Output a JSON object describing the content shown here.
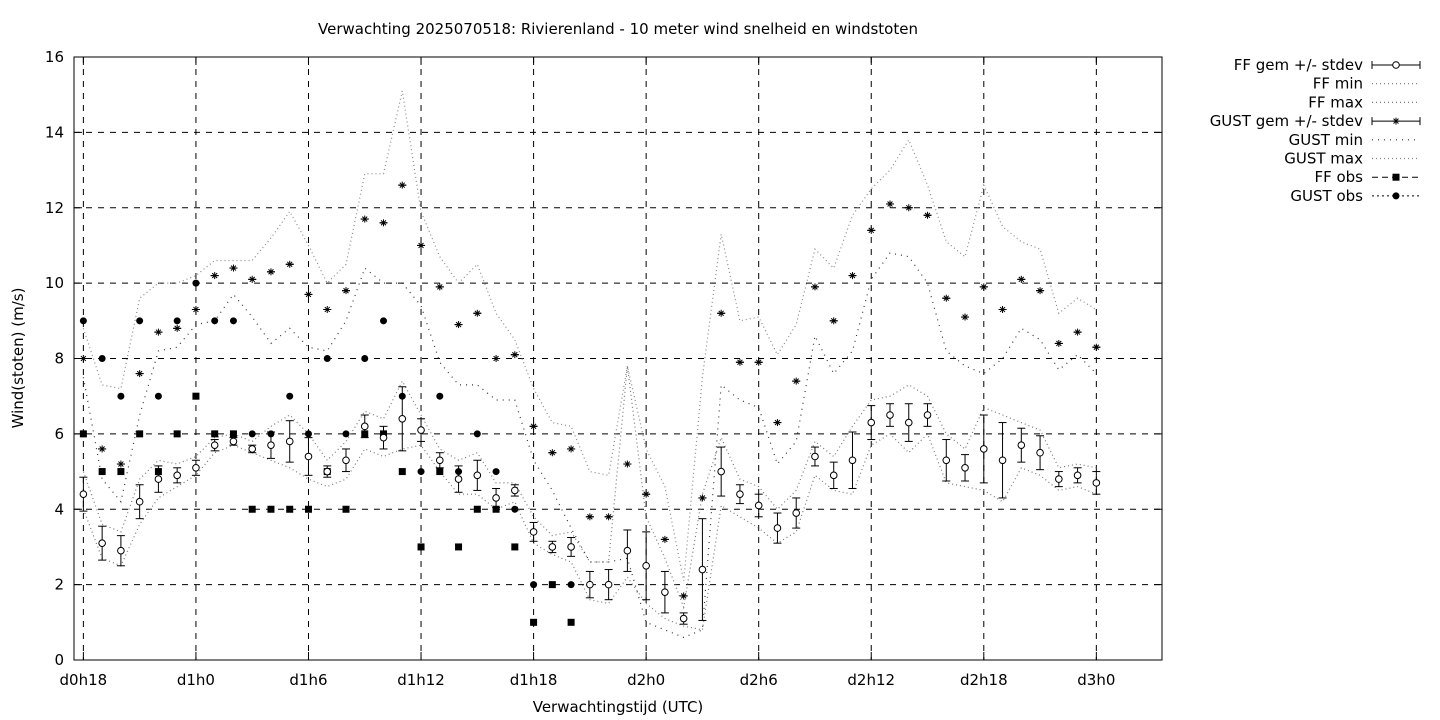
{
  "chart_data": {
    "type": "scatter",
    "title": "Verwachting 2025070518: Rivierenland - 10 meter wind snelheid en windstoten",
    "xlabel": "Verwachtingstijd (UTC)",
    "ylabel": "Wind(stoten) (m/s)",
    "ylim": [
      0,
      16
    ],
    "xlim": [
      -0.5,
      57.5
    ],
    "grid": true,
    "legend_position": "outside-top-right",
    "y_ticks": [
      "0",
      "2",
      "4",
      "6",
      "8",
      "10",
      "12",
      "14",
      "16"
    ],
    "x_ticks": [
      {
        "x": 0,
        "label": "d0h18"
      },
      {
        "x": 6,
        "label": "d1h0"
      },
      {
        "x": 12,
        "label": "d1h6"
      },
      {
        "x": 18,
        "label": "d1h12"
      },
      {
        "x": 24,
        "label": "d1h18"
      },
      {
        "x": 30,
        "label": "d2h0"
      },
      {
        "x": 36,
        "label": "d2h6"
      },
      {
        "x": 42,
        "label": "d2h12"
      },
      {
        "x": 48,
        "label": "d2h18"
      },
      {
        "x": 54,
        "label": "d3h0"
      }
    ],
    "series": [
      {
        "name": "FF gem +/- stdev",
        "x": [
          0,
          1,
          2,
          3,
          4,
          5,
          6,
          7,
          8,
          9,
          10,
          11,
          12,
          13,
          14,
          15,
          16,
          17,
          18,
          19,
          20,
          21,
          22,
          23,
          24,
          25,
          26,
          27,
          28,
          29,
          30,
          31,
          32,
          33,
          34,
          35,
          36,
          37,
          38,
          39,
          40,
          41,
          42,
          43,
          44,
          45,
          46,
          47,
          48,
          49,
          50,
          51,
          52,
          53,
          54
        ],
        "y": [
          4.4,
          3.1,
          2.9,
          4.2,
          4.8,
          4.9,
          5.1,
          5.7,
          5.8,
          5.6,
          5.7,
          5.8,
          5.4,
          5.0,
          5.3,
          6.2,
          5.9,
          6.4,
          6.1,
          5.3,
          4.8,
          4.9,
          4.3,
          4.5,
          3.4,
          3.0,
          3.0,
          2.0,
          2.0,
          2.9,
          2.5,
          1.8,
          1.1,
          2.4,
          5.0,
          4.4,
          4.1,
          3.5,
          3.9,
          5.4,
          4.9,
          5.3,
          6.3,
          6.5,
          6.3,
          6.5,
          5.3,
          5.1,
          5.6,
          5.3,
          5.7,
          5.5,
          4.8,
          4.9,
          4.7
        ],
        "stdev": [
          0.45,
          0.45,
          0.4,
          0.45,
          0.35,
          0.2,
          0.2,
          0.15,
          0.1,
          0.1,
          0.35,
          0.55,
          0.5,
          0.15,
          0.3,
          0.3,
          0.3,
          0.85,
          0.3,
          0.2,
          0.35,
          0.4,
          0.25,
          0.15,
          0.25,
          0.15,
          0.25,
          0.35,
          0.4,
          0.55,
          0.9,
          0.55,
          0.15,
          1.35,
          0.65,
          0.25,
          0.3,
          0.4,
          0.4,
          0.25,
          0.35,
          0.75,
          0.45,
          0.3,
          0.5,
          0.3,
          0.55,
          0.35,
          0.9,
          1.0,
          0.45,
          0.45,
          0.2,
          0.2,
          0.3
        ]
      },
      {
        "name": "FF min",
        "x": [
          0,
          1,
          2,
          3,
          4,
          5,
          6,
          7,
          8,
          9,
          10,
          11,
          12,
          13,
          14,
          15,
          16,
          17,
          18,
          19,
          20,
          21,
          22,
          23,
          24,
          25,
          26,
          27,
          28,
          29,
          30,
          31,
          32,
          33,
          34,
          35,
          36,
          37,
          38,
          39,
          40,
          41,
          42,
          43,
          44,
          45,
          46,
          47,
          48,
          49,
          50,
          51,
          52,
          53,
          54
        ],
        "y": [
          4.0,
          2.7,
          2.5,
          3.6,
          4.3,
          4.6,
          4.9,
          5.5,
          5.7,
          5.5,
          5.3,
          5.1,
          4.8,
          4.6,
          4.8,
          5.6,
          5.4,
          5.6,
          5.7,
          5.0,
          4.4,
          4.4,
          4.0,
          4.2,
          3.1,
          2.8,
          2.6,
          1.6,
          1.5,
          2.2,
          1.5,
          1.1,
          0.9,
          0.8,
          4.1,
          3.8,
          3.5,
          3.1,
          3.4,
          4.9,
          4.5,
          4.4,
          5.7,
          6.0,
          5.5,
          6.0,
          4.7,
          4.6,
          4.5,
          4.2,
          5.1,
          4.9,
          4.5,
          4.6,
          4.4
        ]
      },
      {
        "name": "FF max",
        "x": [
          0,
          1,
          2,
          3,
          4,
          5,
          6,
          7,
          8,
          9,
          10,
          11,
          12,
          13,
          14,
          15,
          16,
          17,
          18,
          19,
          20,
          21,
          22,
          23,
          24,
          25,
          26,
          27,
          28,
          29,
          30,
          31,
          32,
          33,
          34,
          35,
          36,
          37,
          38,
          39,
          40,
          41,
          42,
          43,
          44,
          45,
          46,
          47,
          48,
          49,
          50,
          51,
          52,
          53,
          54
        ],
        "y": [
          5.0,
          3.6,
          3.4,
          4.8,
          5.3,
          5.2,
          5.4,
          5.9,
          6.0,
          5.8,
          6.2,
          6.5,
          6.0,
          5.3,
          5.8,
          6.6,
          6.4,
          7.4,
          6.5,
          5.6,
          5.3,
          5.5,
          4.7,
          4.7,
          3.8,
          3.3,
          3.4,
          2.6,
          2.6,
          7.8,
          3.8,
          2.7,
          1.4,
          4.4,
          5.9,
          4.8,
          4.6,
          4.0,
          4.5,
          5.8,
          5.4,
          6.2,
          6.9,
          7.0,
          7.3,
          7.0,
          6.0,
          5.6,
          6.7,
          6.5,
          6.3,
          6.1,
          5.1,
          5.2,
          5.1
        ]
      },
      {
        "name": "GUST gem +/- stdev",
        "x": [
          0,
          1,
          2,
          3,
          4,
          5,
          6,
          7,
          8,
          9,
          10,
          11,
          12,
          13,
          14,
          15,
          16,
          17,
          18,
          19,
          20,
          21,
          22,
          23,
          24,
          25,
          26,
          27,
          28,
          29,
          30,
          31,
          32,
          33,
          34,
          35,
          36,
          37,
          38,
          39,
          40,
          41,
          42,
          43,
          44,
          45,
          46,
          47,
          48,
          49,
          50,
          51,
          52,
          53,
          54
        ],
        "y": [
          8.0,
          5.6,
          5.2,
          7.6,
          8.7,
          8.8,
          9.3,
          10.2,
          10.4,
          10.1,
          10.3,
          10.5,
          9.7,
          9.3,
          9.8,
          11.7,
          11.6,
          12.6,
          11.0,
          9.9,
          8.9,
          9.2,
          8.0,
          8.1,
          6.2,
          5.5,
          5.6,
          3.8,
          3.8,
          5.2,
          4.4,
          3.2,
          1.7,
          4.3,
          9.2,
          7.9,
          7.9,
          6.3,
          7.4,
          9.9,
          9.0,
          10.2,
          11.4,
          12.1,
          12.0,
          11.8,
          9.6,
          9.1,
          9.9,
          9.3,
          10.1,
          9.8,
          8.4,
          8.7,
          8.3
        ]
      },
      {
        "name": "GUST min",
        "x": [
          0,
          1,
          2,
          3,
          4,
          5,
          6,
          7,
          8,
          9,
          10,
          11,
          12,
          13,
          14,
          15,
          16,
          17,
          18,
          19,
          20,
          21,
          22,
          23,
          24,
          25,
          26,
          27,
          28,
          29,
          30,
          31,
          32,
          33,
          34,
          35,
          36,
          37,
          38,
          39,
          40,
          41,
          42,
          43,
          44,
          45,
          46,
          47,
          48,
          49,
          50,
          51,
          52,
          53,
          54
        ],
        "y": [
          7.5,
          4.8,
          4.2,
          6.5,
          8.2,
          8.3,
          8.9,
          9.0,
          9.7,
          9.1,
          8.4,
          8.8,
          8.3,
          8.2,
          9.0,
          10.4,
          10.0,
          10.0,
          9.4,
          7.9,
          7.3,
          7.3,
          6.9,
          6.9,
          5.3,
          4.5,
          3.5,
          2.6,
          2.6,
          2.7,
          1.0,
          0.8,
          0.6,
          0.8,
          7.3,
          6.9,
          6.7,
          5.2,
          5.8,
          8.6,
          7.6,
          8.2,
          10.1,
          10.8,
          10.7,
          10.0,
          8.2,
          7.8,
          7.6,
          8.0,
          8.8,
          8.5,
          7.7,
          8.1,
          7.6
        ]
      },
      {
        "name": "GUST max",
        "x": [
          0,
          1,
          2,
          3,
          4,
          5,
          6,
          7,
          8,
          9,
          10,
          11,
          12,
          13,
          14,
          15,
          16,
          17,
          18,
          19,
          20,
          21,
          22,
          23,
          24,
          25,
          26,
          27,
          28,
          29,
          30,
          31,
          32,
          33,
          34,
          35,
          36,
          37,
          38,
          39,
          40,
          41,
          42,
          43,
          44,
          45,
          46,
          47,
          48,
          49,
          50,
          51,
          52,
          53,
          54
        ],
        "y": [
          8.8,
          7.3,
          7.2,
          9.6,
          10.0,
          10.0,
          10.2,
          10.6,
          10.6,
          10.6,
          11.2,
          11.9,
          11.0,
          10.0,
          10.5,
          12.9,
          12.9,
          15.1,
          11.9,
          10.7,
          10.0,
          10.5,
          9.2,
          8.5,
          7.2,
          6.3,
          6.2,
          5.0,
          4.9,
          7.8,
          5.6,
          4.6,
          2.1,
          7.5,
          11.3,
          9.0,
          9.1,
          8.1,
          8.9,
          10.9,
          10.4,
          11.8,
          12.5,
          13.0,
          13.8,
          12.6,
          11.1,
          10.7,
          12.6,
          11.5,
          11.1,
          10.9,
          9.2,
          9.6,
          9.3
        ]
      },
      {
        "name": "FF obs",
        "x": [
          0,
          1,
          2,
          3,
          4,
          5,
          6,
          7,
          8,
          9,
          10,
          11,
          12,
          13,
          14,
          15,
          16,
          17,
          18,
          19,
          20,
          21,
          22,
          23,
          24,
          25,
          26
        ],
        "y": [
          6,
          5,
          5,
          6,
          5,
          6,
          7,
          6,
          6,
          4,
          4,
          4,
          4,
          5,
          4,
          6,
          6,
          5,
          3,
          5,
          3,
          4,
          4,
          3,
          1,
          2,
          1
        ]
      },
      {
        "name": "GUST obs",
        "x": [
          0,
          1,
          2,
          3,
          4,
          5,
          6,
          7,
          8,
          9,
          10,
          11,
          12,
          13,
          14,
          15,
          16,
          17,
          18,
          19,
          20,
          21,
          22,
          23,
          24,
          25,
          26
        ],
        "y": [
          9,
          8,
          7,
          9,
          7,
          9,
          10,
          9,
          9,
          6,
          6,
          7,
          6,
          8,
          6,
          8,
          9,
          7,
          5,
          7,
          5,
          6,
          5,
          4,
          2,
          3,
          2
        ]
      }
    ]
  }
}
